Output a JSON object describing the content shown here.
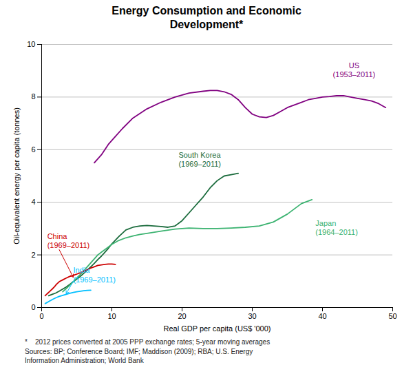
{
  "chart_data": {
    "type": "line",
    "title": "Energy Consumption and Economic\nDevelopment*",
    "xlabel": "Real GDP per capita (US$ '000)",
    "ylabel": "Oil-equivalent energy per capita (tonnes)",
    "xlim": [
      0,
      50
    ],
    "ylim": [
      0,
      10
    ],
    "xticks": [
      0,
      10,
      20,
      30,
      40,
      50
    ],
    "yticks": [
      0,
      2,
      4,
      6,
      8,
      10
    ],
    "grid": "y",
    "footnotes": [
      "*    2012 prices converted at 2005 PPP exchange rates; 5-year moving averages",
      "Sources: BP; Conference Board; IMF; Maddison (2009); RBA; U.S. Energy",
      "Information Administration; World Bank"
    ],
    "series": [
      {
        "name": "US\n(1953–2011)",
        "color": "#800080",
        "x": [
          7.5,
          8.5,
          9.5,
          10.5,
          11.5,
          13,
          15,
          17,
          19,
          21,
          23,
          24,
          25,
          26,
          27,
          28,
          29,
          30,
          31,
          32,
          33,
          34,
          35,
          36,
          37,
          38,
          39,
          40,
          41,
          42,
          43,
          44,
          45,
          46,
          47,
          48,
          49
        ],
        "values": [
          5.5,
          5.8,
          6.2,
          6.5,
          6.8,
          7.2,
          7.55,
          7.8,
          8.0,
          8.15,
          8.22,
          8.25,
          8.25,
          8.2,
          8.1,
          7.9,
          7.6,
          7.35,
          7.25,
          7.22,
          7.3,
          7.45,
          7.6,
          7.7,
          7.8,
          7.9,
          7.95,
          8.0,
          8.02,
          8.05,
          8.05,
          8.0,
          7.95,
          7.9,
          7.85,
          7.75,
          7.6
        ],
        "annotation": {
          "x": 44.5,
          "y": 8.75
        }
      },
      {
        "name": "South Korea\n(1969–2011)",
        "color": "#1a6b3c",
        "x": [
          1.0,
          1.5,
          2.0,
          2.5,
          3.0,
          3.5,
          4.0,
          4.5,
          5.0,
          5.5,
          6.0,
          6.5,
          7.0,
          7.5,
          8.0,
          8.5,
          9.0,
          9.5,
          10.0,
          11.0,
          12.0,
          13.0,
          14.0,
          15.0,
          16.0,
          17.0,
          18.0,
          19.0,
          20.0,
          21.0,
          22.0,
          23.0,
          24.0,
          25.0,
          26.0,
          27.0,
          28.0
        ],
        "values": [
          0.45,
          0.5,
          0.55,
          0.62,
          0.7,
          0.78,
          0.88,
          0.98,
          1.08,
          1.18,
          1.3,
          1.42,
          1.55,
          1.68,
          1.82,
          1.95,
          2.1,
          2.25,
          2.42,
          2.7,
          2.95,
          3.05,
          3.1,
          3.12,
          3.1,
          3.08,
          3.05,
          3.1,
          3.3,
          3.6,
          3.9,
          4.2,
          4.55,
          4.82,
          5.0,
          5.05,
          5.1
        ],
        "annotation": {
          "x": 19.5,
          "y": 5.35
        }
      },
      {
        "name": "Japan\n(1964–2011)",
        "color": "#3cb371",
        "x": [
          3.0,
          3.5,
          4.0,
          4.5,
          5.0,
          5.5,
          6.0,
          6.5,
          7.0,
          7.5,
          8.0,
          8.5,
          9.0,
          9.5,
          10.0,
          11.0,
          12.0,
          13.0,
          14.0,
          15.0,
          17.0,
          19.0,
          21.0,
          23.0,
          25.0,
          27.0,
          29.0,
          31.0,
          33.0,
          35.0,
          37.0,
          38.5
        ],
        "values": [
          0.6,
          0.72,
          0.85,
          0.98,
          1.12,
          1.25,
          1.4,
          1.55,
          1.7,
          1.85,
          2.0,
          2.1,
          2.2,
          2.3,
          2.4,
          2.55,
          2.65,
          2.72,
          2.78,
          2.82,
          2.9,
          2.98,
          3.02,
          3.0,
          3.0,
          3.02,
          3.05,
          3.1,
          3.25,
          3.55,
          3.95,
          4.1
        ],
        "annotation": {
          "x": 39.0,
          "y": 3.05
        }
      },
      {
        "name": "China\n(1969–2011)",
        "color": "#cc0000",
        "x": [
          0.5,
          0.7,
          0.9,
          1.1,
          1.3,
          1.5,
          1.8,
          2.1,
          2.5,
          3.0,
          3.5,
          4.0,
          4.5,
          5.0,
          5.5,
          6.0,
          6.5,
          7.0,
          7.5,
          8.0,
          8.5,
          9.0,
          9.5,
          10.0,
          10.5
        ],
        "values": [
          0.45,
          0.5,
          0.55,
          0.6,
          0.65,
          0.7,
          0.78,
          0.88,
          0.98,
          1.05,
          1.12,
          1.18,
          1.22,
          1.27,
          1.32,
          1.38,
          1.44,
          1.5,
          1.55,
          1.6,
          1.62,
          1.64,
          1.65,
          1.65,
          1.64
        ],
        "annotation": {
          "x": 0.8,
          "y": 2.55,
          "arrow": {
            "from": [
              2.5,
              2.2
            ],
            "to": [
              4.5,
              1.15
            ]
          }
        }
      },
      {
        "name": "India\n(1969–2011)",
        "color": "#00bfff",
        "x": [
          0.5,
          0.7,
          0.9,
          1.1,
          1.3,
          1.5,
          1.8,
          2.1,
          2.5,
          3.0,
          3.5,
          4.0,
          4.5,
          5.0,
          5.5,
          6.0,
          6.5,
          7.0
        ],
        "values": [
          0.15,
          0.18,
          0.21,
          0.24,
          0.27,
          0.3,
          0.34,
          0.38,
          0.42,
          0.46,
          0.5,
          0.54,
          0.57,
          0.6,
          0.62,
          0.64,
          0.65,
          0.66
        ],
        "annotation": {
          "x": 4.5,
          "y": 1.25,
          "arrow": {
            "from": [
              4.5,
              1.0
            ],
            "to": [
              3.5,
              0.52
            ]
          }
        }
      }
    ]
  }
}
